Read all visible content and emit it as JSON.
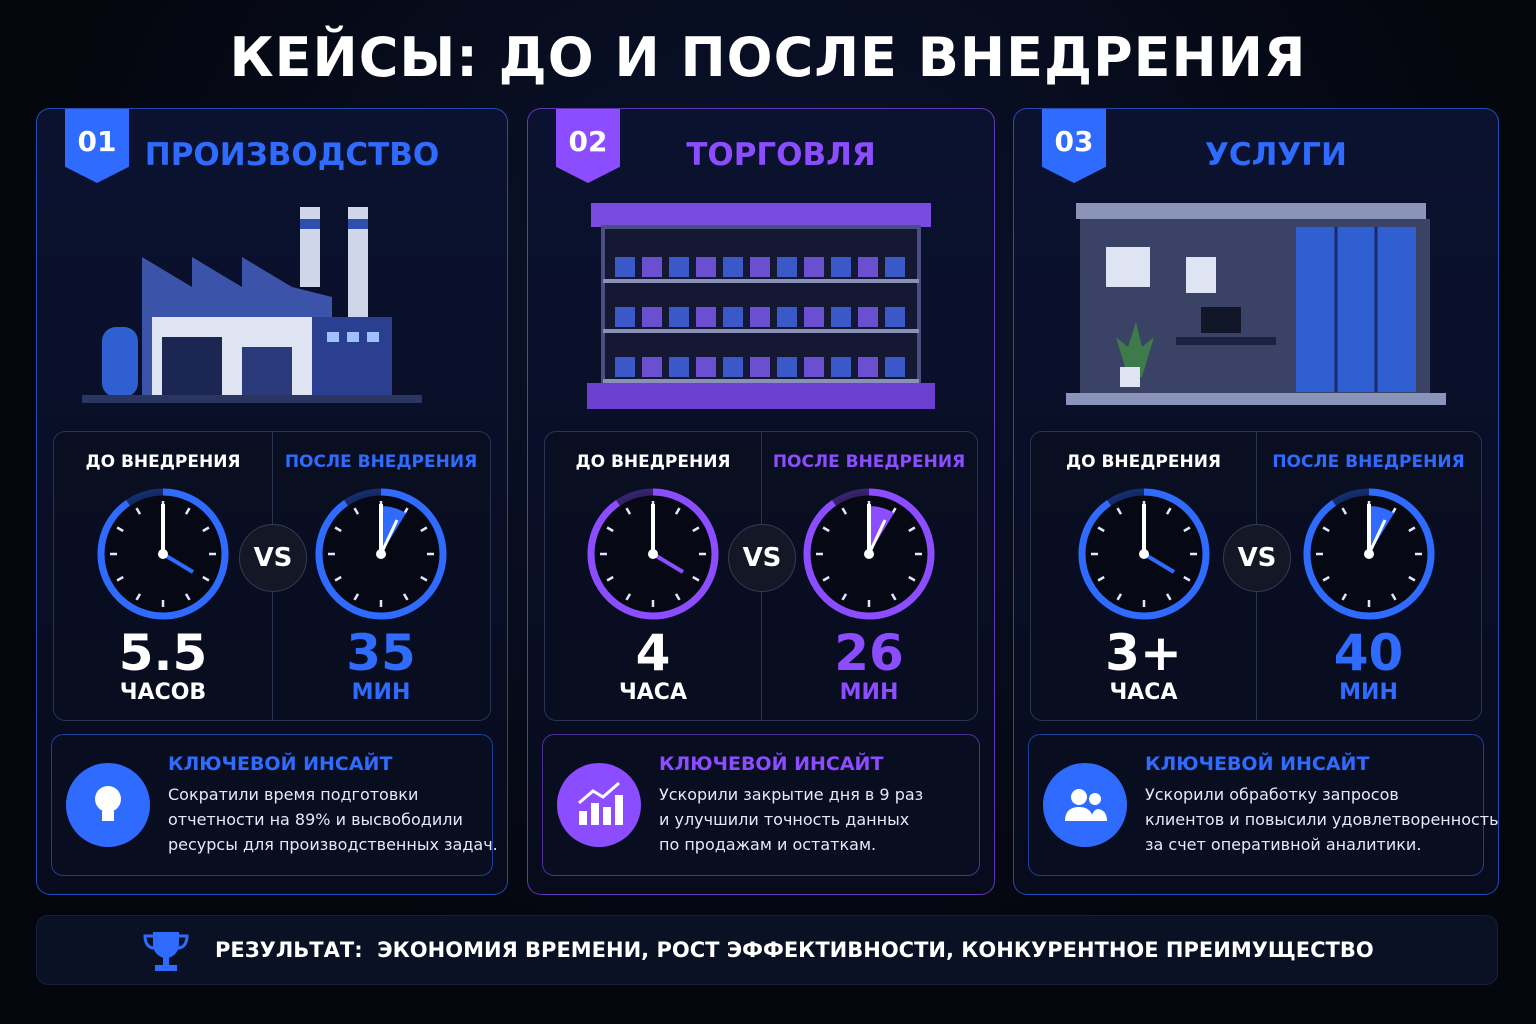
{
  "title": "КЕЙСЫ: ДО И ПОСЛЕ ВНЕДРЕНИЯ",
  "cases": [
    {
      "number": "01",
      "name": "ПРОИЗВОДСТВО",
      "color": "#2f6bff",
      "before_label": "ДО ВНЕДРЕНИЯ",
      "after_label": "ПОСЛЕ ВНЕДРЕНИЯ",
      "vs": "VS",
      "before_value": "5.5",
      "before_unit": "ЧАСОВ",
      "after_value": "35",
      "after_unit": "МИН",
      "insight_title": "КЛЮЧЕВОЙ ИНСАЙТ",
      "insight_text": [
        "Сократили время подготовки",
        "отчетности на 89% и высвободили",
        "ресурсы для производственных задач."
      ]
    },
    {
      "number": "02",
      "name": "ТОРГОВЛЯ",
      "color": "#8b4dff",
      "before_label": "ДО ВНЕДРЕНИЯ",
      "after_label": "ПОСЛЕ ВНЕДРЕНИЯ",
      "vs": "VS",
      "before_value": "4",
      "before_unit": "ЧАСА",
      "after_value": "26",
      "after_unit": "МИН",
      "insight_title": "КЛЮЧЕВОЙ ИНСАЙТ",
      "insight_text": [
        "Ускорили закрытие дня в 9 раз",
        "и улучшили точность данных",
        "по продажам и остаткам."
      ]
    },
    {
      "number": "03",
      "name": "УСЛУГИ",
      "color": "#2f6bff",
      "before_label": "ДО ВНЕДРЕНИЯ",
      "after_label": "ПОСЛЕ ВНЕДРЕНИЯ",
      "vs": "VS",
      "before_value": "3+",
      "before_unit": "ЧАСА",
      "after_value": "40",
      "after_unit": "МИН",
      "insight_title": "КЛЮЧЕВОЙ ИНСАЙТ",
      "insight_text": [
        "Ускорили обработку запросов",
        "клиентов и повысили удовлетворенность",
        "за счет оперативной аналитики."
      ]
    }
  ],
  "footer": {
    "label": "РЕЗУЛЬТАТ:",
    "text": "ЭКОНОМИЯ ВРЕМЕНИ, РОСТ ЭФФЕКТИВНОСТИ, КОНКУРЕНТНОЕ ПРЕИМУЩЕСТВО"
  }
}
